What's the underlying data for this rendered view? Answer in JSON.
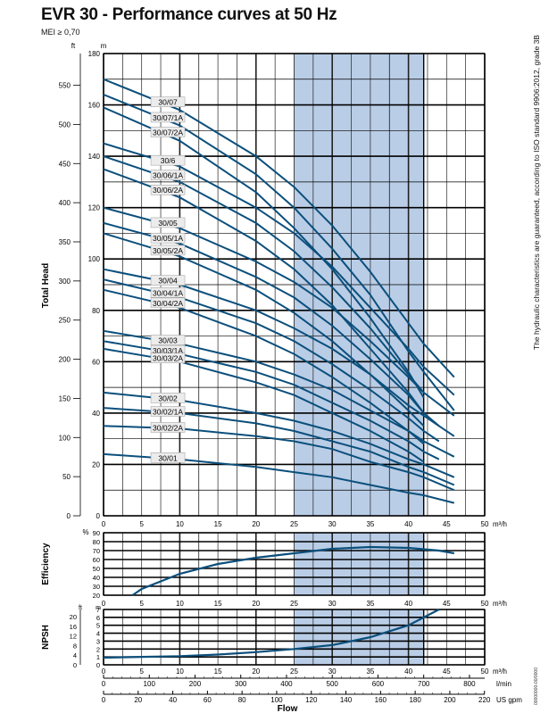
{
  "title": "EVR 30 - Performance curves at 50 Hz",
  "subtitle": "MEI ≥ 0,70",
  "side_note": "The hydraulic characteristics are guaranteed, according to ISO standard 9906:2012, grade 3B",
  "ref_code": "00000000-00/0000",
  "colors": {
    "curve": "#0b4f7c",
    "band": "#b9cde6",
    "grid_minor": "#222222",
    "grid_major": "#000000",
    "label_bg": "#ececec"
  },
  "chart_data": [
    {
      "type": "line",
      "name": "head",
      "ylabel": "Total Head",
      "unit_left": "ft",
      "unit_right": "m",
      "xunit": "m³/h",
      "xlim": [
        0,
        50
      ],
      "ylim": [
        0,
        180
      ],
      "ylim_ft": [
        0,
        590
      ],
      "x_ticks": [
        "0",
        "5",
        "10",
        "15",
        "20",
        "25",
        "30",
        "35",
        "40",
        "45",
        "50"
      ],
      "y_ticks_m": [
        "0",
        "20",
        "40",
        "60",
        "80",
        "100",
        "120",
        "140",
        "160",
        "180"
      ],
      "y_ticks_ft": [
        "0",
        "50",
        "100",
        "150",
        "200",
        "250",
        "300",
        "350",
        "400",
        "450",
        "500",
        "550"
      ],
      "preferred_range": [
        25,
        42
      ],
      "grid": true,
      "series": [
        {
          "name": "30/07",
          "label_x": 7.5,
          "points": [
            [
              0,
              170
            ],
            [
              10,
              158
            ],
            [
              20,
              140
            ],
            [
              25,
              128
            ],
            [
              30,
              113
            ],
            [
              35,
              95
            ],
            [
              40,
              75
            ],
            [
              42,
              67
            ],
            [
              46,
              54
            ]
          ]
        },
        {
          "name": "30/07/1A",
          "label_x": 7.5,
          "points": [
            [
              0,
              164
            ],
            [
              10,
              152
            ],
            [
              20,
              133
            ],
            [
              25,
              120
            ],
            [
              30,
              104
            ],
            [
              35,
              86
            ],
            [
              40,
              64
            ],
            [
              42,
              56
            ],
            [
              46,
              41
            ]
          ]
        },
        {
          "name": "30/07/2A",
          "label_x": 7.5,
          "points": [
            [
              0,
              159
            ],
            [
              10,
              146
            ],
            [
              20,
              126
            ],
            [
              25,
              112
            ],
            [
              30,
              96
            ],
            [
              35,
              77
            ],
            [
              40,
              56
            ],
            [
              42,
              46
            ]
          ]
        },
        {
          "name": "30/6",
          "label_x": 7.5,
          "points": [
            [
              0,
              145
            ],
            [
              10,
              136
            ],
            [
              20,
              120
            ],
            [
              25,
              110
            ],
            [
              30,
              97
            ],
            [
              35,
              81
            ],
            [
              40,
              65
            ],
            [
              42,
              58
            ],
            [
              46,
              47
            ]
          ]
        },
        {
          "name": "30/06/1A",
          "label_x": 7.5,
          "points": [
            [
              0,
              140
            ],
            [
              10,
              130
            ],
            [
              20,
              114
            ],
            [
              25,
              103
            ],
            [
              30,
              89
            ],
            [
              35,
              73
            ],
            [
              40,
              55
            ],
            [
              42,
              48
            ]
          ]
        },
        {
          "name": "30/06/2A",
          "label_x": 7.5,
          "points": [
            [
              0,
              135
            ],
            [
              10,
              124
            ],
            [
              20,
              107
            ],
            [
              25,
              96
            ],
            [
              30,
              82
            ],
            [
              35,
              65
            ],
            [
              40,
              48
            ],
            [
              42,
              40
            ]
          ]
        },
        {
          "name": "30/05",
          "label_x": 7.5,
          "points": [
            [
              0,
              120
            ],
            [
              10,
              112
            ],
            [
              20,
              99
            ],
            [
              25,
              91
            ],
            [
              30,
              81
            ],
            [
              35,
              68
            ],
            [
              40,
              54
            ],
            [
              42,
              48
            ],
            [
              46,
              39
            ]
          ]
        },
        {
          "name": "30/05/1A",
          "label_x": 7.5,
          "points": [
            [
              0,
              114
            ],
            [
              10,
              106
            ],
            [
              20,
              93
            ],
            [
              25,
              85
            ],
            [
              30,
              74
            ],
            [
              35,
              61
            ],
            [
              40,
              47
            ],
            [
              42,
              40
            ],
            [
              44,
              35
            ]
          ]
        },
        {
          "name": "30/05/2A",
          "label_x": 7.5,
          "points": [
            [
              0,
              110
            ],
            [
              10,
              101
            ],
            [
              20,
              88
            ],
            [
              25,
              79
            ],
            [
              30,
              68
            ],
            [
              35,
              55
            ],
            [
              40,
              41
            ],
            [
              42,
              35
            ]
          ]
        },
        {
          "name": "30/04",
          "label_x": 7.5,
          "points": [
            [
              0,
              96
            ],
            [
              10,
              90
            ],
            [
              20,
              80
            ],
            [
              25,
              73
            ],
            [
              30,
              65
            ],
            [
              35,
              55
            ],
            [
              40,
              43
            ],
            [
              42,
              39
            ],
            [
              46,
              31
            ]
          ]
        },
        {
          "name": "30/04/1A",
          "label_x": 7.5,
          "points": [
            [
              0,
              92
            ],
            [
              10,
              85
            ],
            [
              20,
              75
            ],
            [
              25,
              68
            ],
            [
              30,
              59
            ],
            [
              35,
              49
            ],
            [
              40,
              38
            ],
            [
              42,
              33
            ],
            [
              44,
              29
            ]
          ]
        },
        {
          "name": "30/04/2A",
          "label_x": 7.5,
          "points": [
            [
              0,
              88
            ],
            [
              10,
              81
            ],
            [
              20,
              70
            ],
            [
              25,
              63
            ],
            [
              30,
              54
            ],
            [
              35,
              44
            ],
            [
              40,
              33
            ],
            [
              42,
              28
            ]
          ]
        },
        {
          "name": "30/03",
          "label_x": 7.5,
          "points": [
            [
              0,
              72
            ],
            [
              10,
              67
            ],
            [
              20,
              60
            ],
            [
              25,
              55
            ],
            [
              30,
              49
            ],
            [
              35,
              41
            ],
            [
              40,
              33
            ],
            [
              42,
              29
            ],
            [
              46,
              23
            ]
          ]
        },
        {
          "name": "30/03/1A",
          "label_x": 7.5,
          "points": [
            [
              0,
              68
            ],
            [
              10,
              63
            ],
            [
              20,
              56
            ],
            [
              25,
              51
            ],
            [
              30,
              44
            ],
            [
              35,
              37
            ],
            [
              40,
              29
            ],
            [
              42,
              25
            ],
            [
              44,
              22
            ]
          ]
        },
        {
          "name": "30/03/2A",
          "label_x": 7.5,
          "points": [
            [
              0,
              65
            ],
            [
              10,
              60
            ],
            [
              20,
              52
            ],
            [
              25,
              47
            ],
            [
              30,
              40
            ],
            [
              35,
              33
            ],
            [
              40,
              25
            ],
            [
              42,
              21
            ]
          ]
        },
        {
          "name": "30/02",
          "label_x": 7.5,
          "points": [
            [
              0,
              48
            ],
            [
              10,
              45
            ],
            [
              20,
              40
            ],
            [
              25,
              37
            ],
            [
              30,
              33
            ],
            [
              35,
              28
            ],
            [
              40,
              22
            ],
            [
              42,
              20
            ],
            [
              46,
              15
            ]
          ]
        },
        {
          "name": "30/02/1A",
          "label_x": 7.5,
          "points": [
            [
              0,
              42
            ],
            [
              10,
              40
            ],
            [
              20,
              36
            ],
            [
              25,
              33
            ],
            [
              30,
              29
            ],
            [
              35,
              25
            ],
            [
              40,
              19
            ],
            [
              42,
              17
            ],
            [
              46,
              12
            ]
          ]
        },
        {
          "name": "30/02/2A",
          "label_x": 7.5,
          "points": [
            [
              0,
              35
            ],
            [
              10,
              34
            ],
            [
              20,
              31
            ],
            [
              25,
              29
            ],
            [
              30,
              26
            ],
            [
              35,
              21
            ],
            [
              40,
              17
            ],
            [
              42,
              15
            ],
            [
              46,
              10
            ]
          ]
        },
        {
          "name": "30/01",
          "label_x": 7.5,
          "points": [
            [
              0,
              24
            ],
            [
              10,
              22
            ],
            [
              20,
              19
            ],
            [
              25,
              17
            ],
            [
              30,
              15
            ],
            [
              35,
              12
            ],
            [
              40,
              9
            ],
            [
              42,
              8
            ],
            [
              46,
              5
            ]
          ]
        }
      ]
    },
    {
      "type": "line",
      "name": "efficiency",
      "ylabel": "Efficiency",
      "unit_left": "%",
      "xunit": "m³/h",
      "xlim": [
        0,
        50
      ],
      "ylim": [
        20,
        90
      ],
      "y_ticks": [
        "20",
        "30",
        "40",
        "50",
        "60",
        "70",
        "80",
        "90"
      ],
      "x_ticks": [
        "0",
        "5",
        "10",
        "15",
        "20",
        "25",
        "30",
        "35",
        "40",
        "45",
        "50"
      ],
      "preferred_range": [
        25,
        42
      ],
      "series": [
        {
          "name": "efficiency",
          "points": [
            [
              3.8,
              20
            ],
            [
              5,
              27
            ],
            [
              10,
              44
            ],
            [
              15,
              55
            ],
            [
              20,
              62
            ],
            [
              25,
              67
            ],
            [
              30,
              72
            ],
            [
              35,
              74
            ],
            [
              40,
              73
            ],
            [
              44,
              70
            ],
            [
              46,
              67
            ]
          ]
        }
      ]
    },
    {
      "type": "line",
      "name": "npsh",
      "ylabel": "NPSH",
      "unit_left": "ft",
      "unit_right": "m",
      "xunit": "m³/h",
      "xlim": [
        0,
        50
      ],
      "ylim": [
        0,
        7
      ],
      "y_ticks_m": [
        "0",
        "1",
        "2",
        "3",
        "4",
        "5",
        "6",
        "7"
      ],
      "y_ticks_ft": [
        "0",
        "4",
        "8",
        "12",
        "16",
        "20"
      ],
      "x_ticks": [
        "0",
        "5",
        "10",
        "15",
        "20",
        "25",
        "30",
        "35",
        "40",
        "45",
        "50"
      ],
      "preferred_range": [
        25,
        42
      ],
      "series": [
        {
          "name": "npsh",
          "points": [
            [
              0,
              0.9
            ],
            [
              5,
              1.0
            ],
            [
              10,
              1.1
            ],
            [
              15,
              1.3
            ],
            [
              20,
              1.6
            ],
            [
              25,
              2.0
            ],
            [
              30,
              2.5
            ],
            [
              35,
              3.5
            ],
            [
              40,
              5.0
            ],
            [
              44,
              7.0
            ]
          ]
        }
      ]
    },
    {
      "type": "axis",
      "name": "flow_scales",
      "xlabel": "Flow",
      "lmin_unit": "l/min",
      "lmin_ticks": [
        "0",
        "100",
        "200",
        "300",
        "400",
        "500",
        "600",
        "700",
        "800"
      ],
      "lmin_max": 833.33,
      "gpm_unit": "US gpm",
      "gpm_ticks": [
        "0",
        "20",
        "40",
        "60",
        "80",
        "100",
        "120",
        "140",
        "160",
        "180",
        "200",
        "220"
      ]
    }
  ]
}
